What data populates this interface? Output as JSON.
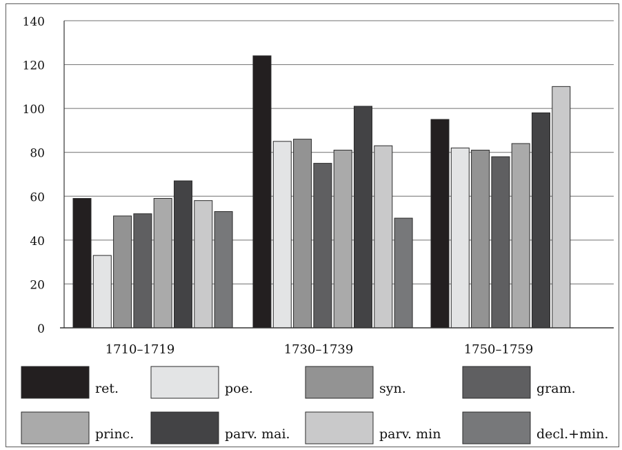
{
  "chart_data": {
    "type": "bar",
    "title": "",
    "xlabel": "",
    "ylabel": "",
    "ylim": [
      0,
      140
    ],
    "yticks": [
      0,
      20,
      40,
      60,
      80,
      100,
      120,
      140
    ],
    "grid": true,
    "legend_position": "bottom",
    "categories": [
      "1710–1719",
      "1730–1739",
      "1750–1759"
    ],
    "series": [
      {
        "name": "ret.",
        "color": "#231f20",
        "values": [
          59,
          124,
          95
        ]
      },
      {
        "name": "poe.",
        "color": "#e3e4e5",
        "values": [
          33,
          85,
          82
        ]
      },
      {
        "name": "syn.",
        "color": "#939393",
        "values": [
          51,
          86,
          81
        ]
      },
      {
        "name": "gram.",
        "color": "#5f5f61",
        "values": [
          52,
          75,
          78
        ]
      },
      {
        "name": "princ.",
        "color": "#aaaaaa",
        "values": [
          59,
          81,
          84
        ]
      },
      {
        "name": "parv. mai.",
        "color": "#434345",
        "values": [
          67,
          101,
          98
        ]
      },
      {
        "name": "parv. min",
        "color": "#c9c9ca",
        "values": [
          58,
          83,
          110
        ]
      },
      {
        "name": "decl.+min.",
        "color": "#77787a",
        "values": [
          53,
          50,
          null
        ]
      }
    ]
  }
}
